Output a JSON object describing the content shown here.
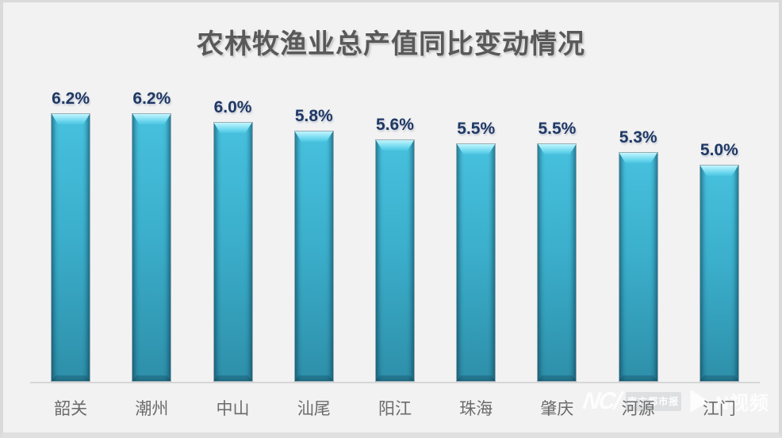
{
  "chart_data": {
    "type": "bar",
    "title": "农林牧渔业总产值同比变动情况",
    "categories": [
      "韶关",
      "潮州",
      "中山",
      "汕尾",
      "阳江",
      "珠海",
      "肇庆",
      "河源",
      "江门"
    ],
    "values": [
      6.2,
      6.2,
      6.0,
      5.8,
      5.6,
      5.5,
      5.5,
      5.3,
      5.0
    ],
    "value_labels": [
      "6.2%",
      "6.2%",
      "6.0%",
      "5.8%",
      "5.6%",
      "5.5%",
      "5.5%",
      "5.3%",
      "5.0%"
    ],
    "xlabel": "",
    "ylabel": "",
    "ylim": [
      0,
      6.5
    ],
    "grid": false,
    "legend": false,
    "colors": {
      "bar_top": "#47c1de",
      "bar_bottom": "#2e8fa9",
      "bar_bevel_highlight": "#c2f6fe",
      "value_label": "#1f3864",
      "category_label": "#6b6b6b",
      "title": "#595959",
      "background": "#f2f2f2",
      "axis_line": "#d7d7d7"
    }
  },
  "watermark": {
    "logo_text": "NC/",
    "brand_box_text": "南方都市报",
    "video_text": "N视频"
  }
}
